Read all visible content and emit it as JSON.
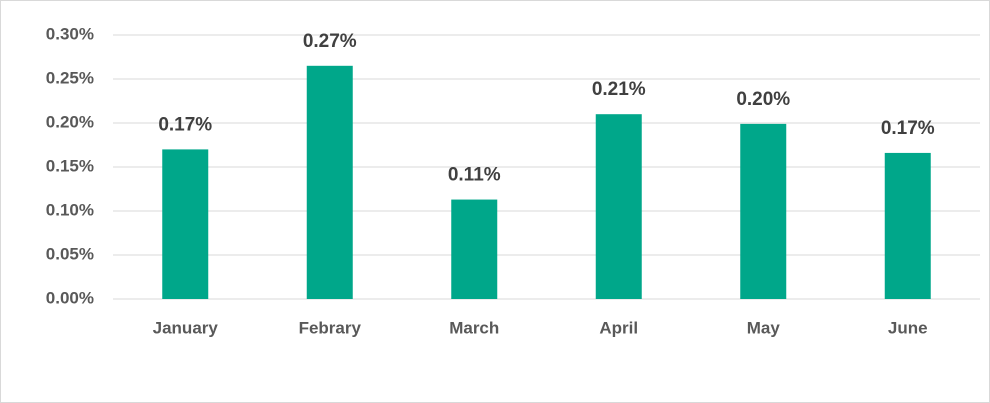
{
  "chart_data": {
    "type": "bar",
    "categories": [
      "January",
      "Febrary",
      "March",
      "April",
      "May",
      "June"
    ],
    "values": [
      0.17,
      0.265,
      0.113,
      0.21,
      0.199,
      0.166
    ],
    "value_labels": [
      "0.17%",
      "0.27%",
      "0.11%",
      "0.21%",
      "0.20%",
      "0.17%"
    ],
    "color": "#00a78a",
    "ylim": [
      0,
      0.3
    ],
    "yticks": [
      {
        "value": 0,
        "label": "0.00%"
      },
      {
        "value": 0.05,
        "label": "0.05%"
      },
      {
        "value": 0.1,
        "label": "0.10%"
      },
      {
        "value": 0.15,
        "label": "0.15%"
      },
      {
        "value": 0.2,
        "label": "0.20%"
      },
      {
        "value": 0.25,
        "label": "0.25%"
      },
      {
        "value": 0.3,
        "label": "0.30%"
      }
    ],
    "grid": true
  }
}
